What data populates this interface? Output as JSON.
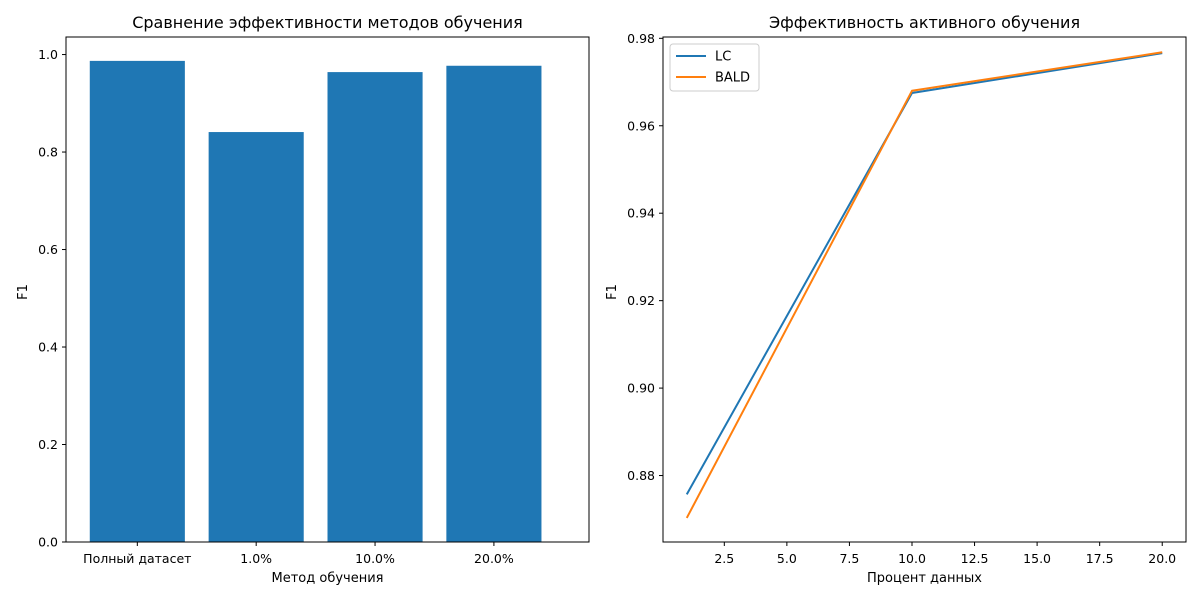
{
  "chart_data": [
    {
      "type": "bar",
      "title": "Сравнение эффективности методов обучения",
      "xlabel": "Метод обучения",
      "ylabel": "F1",
      "categories": [
        "Полный датасет",
        "1.0%",
        "10.0%",
        "20.0%"
      ],
      "values": [
        0.987,
        0.841,
        0.964,
        0.977
      ],
      "ylim": [
        0,
        1.036
      ],
      "yticks": [
        0.0,
        0.2,
        0.4,
        0.6,
        0.8,
        1.0
      ],
      "ytick_labels": [
        "0.0",
        "0.2",
        "0.4",
        "0.6",
        "0.8",
        "1.0"
      ],
      "grid": false,
      "colors": {
        "bar": "#1f77b4"
      }
    },
    {
      "type": "line",
      "title": "Эффективность активного обучения",
      "xlabel": "Процент данных",
      "ylabel": "F1",
      "x": [
        1,
        10,
        20
      ],
      "series": [
        {
          "name": "LC",
          "values": [
            0.8757,
            0.9675,
            0.9766
          ],
          "color": "#1f77b4"
        },
        {
          "name": "BALD",
          "values": [
            0.8703,
            0.968,
            0.9768
          ],
          "color": "#ff7f0e"
        }
      ],
      "xlim": [
        0.05,
        20.95
      ],
      "ylim": [
        0.8648,
        0.9803
      ],
      "xticks": [
        2.5,
        5.0,
        7.5,
        10.0,
        12.5,
        15.0,
        17.5,
        20.0
      ],
      "xtick_labels": [
        "2.5",
        "5.0",
        "7.5",
        "10.0",
        "12.5",
        "15.0",
        "17.5",
        "20.0"
      ],
      "yticks": [
        0.88,
        0.9,
        0.92,
        0.94,
        0.96,
        0.98
      ],
      "ytick_labels": [
        "0.88",
        "0.90",
        "0.92",
        "0.94",
        "0.96",
        "0.98"
      ],
      "grid": false,
      "legend": "top-left"
    }
  ]
}
